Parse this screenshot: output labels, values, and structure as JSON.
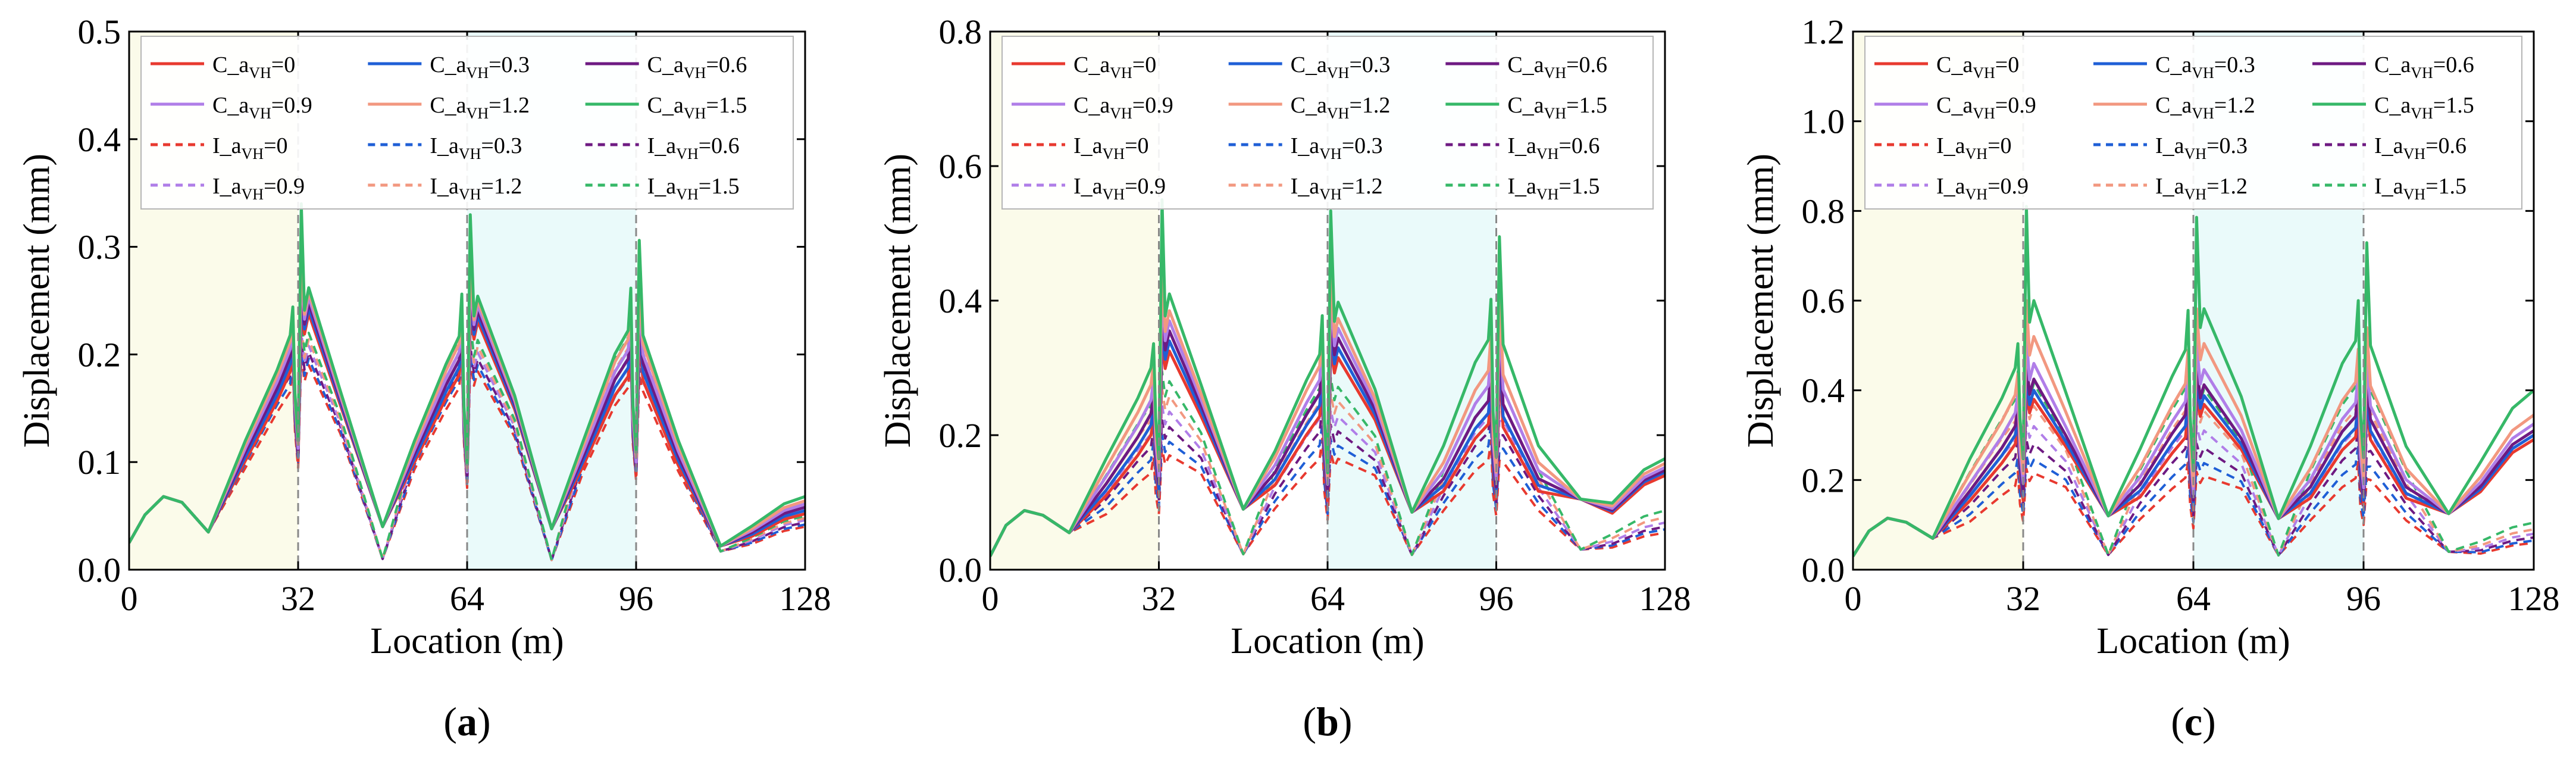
{
  "figure": {
    "background": "#ffffff"
  },
  "legend_labels": [
    {
      "prefix": "C_a",
      "sub": "VH",
      "suffix": "=0"
    },
    {
      "prefix": "C_a",
      "sub": "VH",
      "suffix": "=0.3"
    },
    {
      "prefix": "C_a",
      "sub": "VH",
      "suffix": "=0.6"
    },
    {
      "prefix": "C_a",
      "sub": "VH",
      "suffix": "=0.9"
    },
    {
      "prefix": "C_a",
      "sub": "VH",
      "suffix": "=1.2"
    },
    {
      "prefix": "C_a",
      "sub": "VH",
      "suffix": "=1.5"
    },
    {
      "prefix": "I_a",
      "sub": "VH",
      "suffix": "=0"
    },
    {
      "prefix": "I_a",
      "sub": "VH",
      "suffix": "=0.3"
    },
    {
      "prefix": "I_a",
      "sub": "VH",
      "suffix": "=0.6"
    },
    {
      "prefix": "I_a",
      "sub": "VH",
      "suffix": "=0.9"
    },
    {
      "prefix": "I_a",
      "sub": "VH",
      "suffix": "=1.2"
    },
    {
      "prefix": "I_a",
      "sub": "VH",
      "suffix": "=1.5"
    }
  ],
  "series_colors": [
    "#e8392f",
    "#1f5fd6",
    "#6e1a82",
    "#b07ee8",
    "#f29880",
    "#36b868"
  ],
  "zone_colors": [
    "#fbfbea",
    "#ffffff",
    "#eafafa",
    "#ffffff"
  ],
  "boundary_color": "#888888",
  "chart_data": [
    {
      "type": "line",
      "panel_label": "a",
      "xlabel": "Location (m)",
      "ylabel": "Displacement (mm)",
      "xlim": [
        0,
        128
      ],
      "ylim": [
        0,
        0.5
      ],
      "xticks": [
        0,
        32,
        64,
        96,
        128
      ],
      "yticks": [
        0.0,
        0.1,
        0.2,
        0.3,
        0.4,
        0.5
      ],
      "ytick_labels": [
        "0.0",
        "0.1",
        "0.2",
        "0.3",
        "0.4",
        "0.5"
      ],
      "boundaries": [
        32,
        64,
        96
      ],
      "legend_position": "top",
      "shape": {
        "peak": 0.068,
        "low": 0.035,
        "trough": 0.012,
        "trough2": 0.04,
        "vmin": 0.025,
        "cScale": 0.04,
        "iBase": 0.82,
        "iScale": 0.05,
        "iPeakBoost": 0.02,
        "iSoft": 0.35,
        "iShift": 0.6,
        "iTrough": 0.007
      },
      "series": [
        {
          "name": "C_aVH=0",
          "style": "solid",
          "v32": 0.184,
          "v64": 0.181,
          "v96": 0.176,
          "after": 0.238,
          "spike": 0.243,
          "end": 0.052
        },
        {
          "name": "C_aVH=0.3",
          "style": "solid",
          "v32": 0.191,
          "v64": 0.188,
          "v96": 0.184,
          "after": 0.243,
          "spike": 0.255,
          "end": 0.055
        },
        {
          "name": "C_aVH=0.6",
          "style": "solid",
          "v32": 0.198,
          "v64": 0.195,
          "v96": 0.192,
          "after": 0.248,
          "spike": 0.268,
          "end": 0.058
        },
        {
          "name": "C_aVH=0.9",
          "style": "solid",
          "v32": 0.205,
          "v64": 0.202,
          "v96": 0.2,
          "after": 0.253,
          "spike": 0.282,
          "end": 0.061
        },
        {
          "name": "C_aVH=1.2",
          "style": "solid",
          "v32": 0.212,
          "v64": 0.21,
          "v96": 0.21,
          "after": 0.258,
          "spike": 0.298,
          "end": 0.064
        },
        {
          "name": "C_aVH=1.5",
          "style": "solid",
          "v32": 0.218,
          "v64": 0.217,
          "v96": 0.218,
          "after": 0.262,
          "spike": 0.34,
          "end": 0.068
        },
        {
          "name": "I_aVH=0",
          "style": "dashed",
          "v32": 0.172,
          "v64": 0.169,
          "v96": 0.166,
          "after": 0.19,
          "spike": 0.2,
          "end": 0.04
        },
        {
          "name": "I_aVH=0.3",
          "style": "dashed",
          "v32": 0.18,
          "v64": 0.177,
          "v96": 0.175,
          "after": 0.196,
          "spike": 0.208,
          "end": 0.042
        },
        {
          "name": "I_aVH=0.6",
          "style": "dashed",
          "v32": 0.188,
          "v64": 0.185,
          "v96": 0.184,
          "after": 0.202,
          "spike": 0.215,
          "end": 0.044
        },
        {
          "name": "I_aVH=0.9",
          "style": "dashed",
          "v32": 0.196,
          "v64": 0.194,
          "v96": 0.193,
          "after": 0.208,
          "spike": 0.222,
          "end": 0.046
        },
        {
          "name": "I_aVH=1.2",
          "style": "dashed",
          "v32": 0.204,
          "v64": 0.203,
          "v96": 0.202,
          "after": 0.214,
          "spike": 0.23,
          "end": 0.048
        },
        {
          "name": "I_aVH=1.5",
          "style": "dashed",
          "v32": 0.212,
          "v64": 0.212,
          "v96": 0.212,
          "after": 0.22,
          "spike": 0.238,
          "end": 0.05
        }
      ]
    },
    {
      "type": "line",
      "panel_label": "b",
      "xlabel": "Location (m)",
      "ylabel": "Displacement (mm)",
      "xlim": [
        0,
        128
      ],
      "ylim": [
        0,
        0.8
      ],
      "xticks": [
        0,
        32,
        64,
        96,
        128
      ],
      "yticks": [
        0.0,
        0.2,
        0.4,
        0.6,
        0.8
      ],
      "ytick_labels": [
        "0.0",
        "0.2",
        "0.4",
        "0.6",
        "0.8"
      ],
      "boundaries": [
        32,
        64,
        96
      ],
      "legend_position": "top",
      "shape": {
        "peak": 0.088,
        "low": 0.055,
        "trough": 0.095,
        "trough2": 0.09,
        "vmin": 0.02,
        "cScale": 0.045,
        "iBase": 0.62,
        "iScale": 0.05,
        "iPeakBoost": 0.02,
        "iSoft": 0.3,
        "iShift": 0.6,
        "iTrough": 0.02
      },
      "series": [
        {
          "name": "C_aVH=0",
          "style": "solid",
          "v32": 0.2,
          "v64": 0.228,
          "v96": 0.212,
          "after": 0.325,
          "spike": 0.34,
          "end": 0.14
        },
        {
          "name": "C_aVH=0.3",
          "style": "solid",
          "v32": 0.215,
          "v64": 0.244,
          "v96": 0.228,
          "after": 0.34,
          "spike": 0.365,
          "end": 0.145
        },
        {
          "name": "C_aVH=0.6",
          "style": "solid",
          "v32": 0.232,
          "v64": 0.262,
          "v96": 0.246,
          "after": 0.355,
          "spike": 0.39,
          "end": 0.148
        },
        {
          "name": "C_aVH=0.9",
          "style": "solid",
          "v32": 0.252,
          "v64": 0.282,
          "v96": 0.268,
          "after": 0.37,
          "spike": 0.42,
          "end": 0.152
        },
        {
          "name": "C_aVH=1.2",
          "style": "solid",
          "v32": 0.275,
          "v64": 0.303,
          "v96": 0.29,
          "after": 0.385,
          "spike": 0.46,
          "end": 0.158
        },
        {
          "name": "C_aVH=1.5",
          "style": "solid",
          "v32": 0.3,
          "v64": 0.32,
          "v96": 0.335,
          "after": 0.41,
          "spike": 0.55,
          "end": 0.165
        },
        {
          "name": "I_aVH=0",
          "style": "dashed",
          "v32": 0.15,
          "v64": 0.165,
          "v96": 0.16,
          "after": 0.17,
          "spike": 0.18,
          "end": 0.055
        },
        {
          "name": "I_aVH=0.3",
          "style": "dashed",
          "v32": 0.17,
          "v64": 0.185,
          "v96": 0.18,
          "after": 0.19,
          "spike": 0.2,
          "end": 0.06
        },
        {
          "name": "I_aVH=0.6",
          "style": "dashed",
          "v32": 0.19,
          "v64": 0.205,
          "v96": 0.2,
          "after": 0.212,
          "spike": 0.222,
          "end": 0.064
        },
        {
          "name": "I_aVH=0.9",
          "style": "dashed",
          "v32": 0.21,
          "v64": 0.225,
          "v96": 0.222,
          "after": 0.235,
          "spike": 0.245,
          "end": 0.07
        },
        {
          "name": "I_aVH=1.2",
          "style": "dashed",
          "v32": 0.232,
          "v64": 0.248,
          "v96": 0.245,
          "after": 0.258,
          "spike": 0.27,
          "end": 0.078
        },
        {
          "name": "I_aVH=1.5",
          "style": "dashed",
          "v32": 0.255,
          "v64": 0.27,
          "v96": 0.268,
          "after": 0.28,
          "spike": 0.295,
          "end": 0.088
        }
      ]
    },
    {
      "type": "line",
      "panel_label": "c",
      "xlabel": "Location (m)",
      "ylabel": "Displacement (mm)",
      "xlim": [
        0,
        128
      ],
      "ylim": [
        0,
        1.2
      ],
      "xticks": [
        0,
        32,
        64,
        96,
        128
      ],
      "yticks": [
        0.0,
        0.2,
        0.4,
        0.6,
        0.8,
        1.0,
        1.2
      ],
      "ytick_labels": [
        "0.0",
        "0.2",
        "0.4",
        "0.6",
        "0.8",
        "1.0",
        "1.2"
      ],
      "boundaries": [
        32,
        64,
        96
      ],
      "legend_position": "top",
      "shape": {
        "peak": 0.115,
        "low": 0.07,
        "trough": 0.115,
        "trough2": 0.12,
        "vmin": 0.03,
        "cScale": 0.05,
        "iBase": 0.55,
        "iScale": 0.05,
        "iPeakBoost": 0.03,
        "iSoft": 0.3,
        "iShift": 0.6,
        "iTrough": 0.03
      },
      "series": [
        {
          "name": "C_aVH=0",
          "style": "solid",
          "v32": 0.28,
          "v64": 0.295,
          "v96": 0.29,
          "after": 0.38,
          "spike": 0.4,
          "end": 0.29
        },
        {
          "name": "C_aVH=0.3",
          "style": "solid",
          "v32": 0.3,
          "v64": 0.32,
          "v96": 0.31,
          "after": 0.4,
          "spike": 0.43,
          "end": 0.3
        },
        {
          "name": "C_aVH=0.6",
          "style": "solid",
          "v32": 0.32,
          "v64": 0.345,
          "v96": 0.335,
          "after": 0.425,
          "spike": 0.47,
          "end": 0.31
        },
        {
          "name": "C_aVH=0.9",
          "style": "solid",
          "v32": 0.35,
          "v64": 0.375,
          "v96": 0.365,
          "after": 0.46,
          "spike": 0.52,
          "end": 0.325
        },
        {
          "name": "C_aVH=1.2",
          "style": "solid",
          "v32": 0.39,
          "v64": 0.415,
          "v96": 0.41,
          "after": 0.52,
          "spike": 0.6,
          "end": 0.345
        },
        {
          "name": "C_aVH=1.5",
          "style": "solid",
          "v32": 0.45,
          "v64": 0.49,
          "v96": 0.5,
          "after": 0.6,
          "spike": 0.81,
          "end": 0.4
        },
        {
          "name": "I_aVH=0",
          "style": "dashed",
          "v32": 0.195,
          "v64": 0.205,
          "v96": 0.2,
          "after": 0.215,
          "spike": 0.225,
          "end": 0.06
        },
        {
          "name": "I_aVH=0.3",
          "style": "dashed",
          "v32": 0.225,
          "v64": 0.235,
          "v96": 0.23,
          "after": 0.245,
          "spike": 0.255,
          "end": 0.065
        },
        {
          "name": "I_aVH=0.6",
          "style": "dashed",
          "v32": 0.26,
          "v64": 0.27,
          "v96": 0.265,
          "after": 0.28,
          "spike": 0.29,
          "end": 0.072
        },
        {
          "name": "I_aVH=0.9",
          "style": "dashed",
          "v32": 0.3,
          "v64": 0.31,
          "v96": 0.305,
          "after": 0.32,
          "spike": 0.33,
          "end": 0.08
        },
        {
          "name": "I_aVH=1.2",
          "style": "dashed",
          "v32": 0.345,
          "v64": 0.355,
          "v96": 0.35,
          "after": 0.365,
          "spike": 0.375,
          "end": 0.09
        },
        {
          "name": "I_aVH=1.5",
          "style": "dashed",
          "v32": 0.395,
          "v64": 0.405,
          "v96": 0.4,
          "after": 0.415,
          "spike": 0.425,
          "end": 0.105
        }
      ]
    }
  ]
}
